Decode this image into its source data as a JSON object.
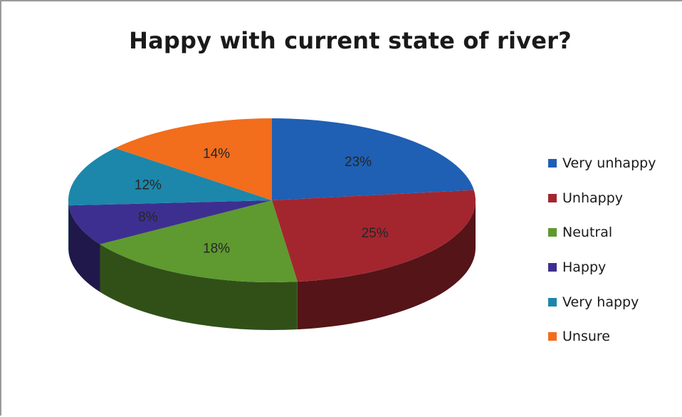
{
  "chart_data": {
    "type": "pie",
    "title": "Happy with current state of river?",
    "categories": [
      "Very unhappy",
      "Unhappy",
      "Neutral",
      "Happy",
      "Very happy",
      "Unsure"
    ],
    "values": [
      23,
      25,
      18,
      8,
      12,
      14
    ],
    "data_labels": [
      "23%",
      "25%",
      "18%",
      "8%",
      "12%",
      "14%"
    ],
    "colors": [
      "#1f5fb4",
      "#a3262f",
      "#5e9a2f",
      "#3d2f8f",
      "#1c87ab",
      "#f26d1c"
    ],
    "legend_position": "right",
    "style": "3d"
  }
}
